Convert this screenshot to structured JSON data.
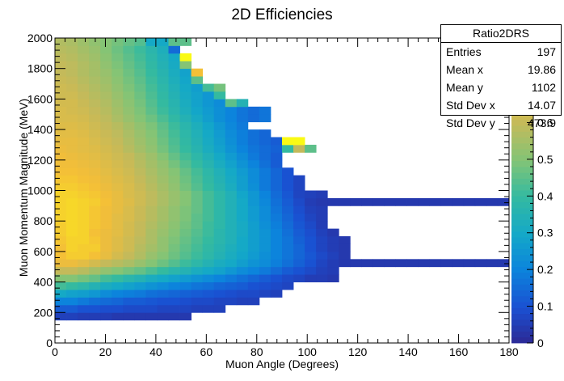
{
  "chart_data": {
    "type": "heatmap",
    "title": "2D Efficiencies",
    "xlabel": "Muon Angle (Degrees)",
    "ylabel": "Muon Momentum Magnitude (MeV)",
    "xlim": [
      0,
      180
    ],
    "ylim": [
      0,
      2000
    ],
    "zlim": [
      0,
      0.8
    ],
    "x_ticks": [
      "0",
      "20",
      "40",
      "60",
      "80",
      "100",
      "120",
      "140",
      "160",
      "180"
    ],
    "y_ticks": [
      "0",
      "200",
      "400",
      "600",
      "800",
      "1000",
      "1200",
      "1400",
      "1600",
      "1800",
      "2000"
    ],
    "colorbar_ticks": [
      "0",
      "0.1",
      "0.2",
      "0.3",
      "0.4",
      "0.5",
      "0.6",
      "0.7"
    ],
    "x_bin_width": 4.5,
    "y_bin_width": 50,
    "colormap": "parula",
    "grid": false,
    "legend": "none",
    "cells_note": "each row: y_bin_start (MeV), x_bin_start (deg), list of efficiencies for consecutive 4.5 deg bins",
    "rows": [
      [
        150,
        0,
        [
          0.06,
          0.06,
          0.05,
          0.05,
          0.05,
          0.04,
          0.04,
          0.04,
          0.04,
          0.04,
          0.04,
          0.04
        ]
      ],
      [
        200,
        0,
        [
          0.12,
          0.12,
          0.1,
          0.1,
          0.09,
          0.09,
          0.08,
          0.08,
          0.08,
          0.07,
          0.07,
          0.07,
          0.06,
          0.06,
          0.06
        ]
      ],
      [
        250,
        0,
        [
          0.2,
          0.2,
          0.18,
          0.16,
          0.15,
          0.14,
          0.12,
          0.12,
          0.11,
          0.1,
          0.1,
          0.09,
          0.08,
          0.08,
          0.07,
          0.07,
          0.06,
          0.06
        ]
      ],
      [
        300,
        0,
        [
          0.3,
          0.28,
          0.27,
          0.25,
          0.22,
          0.2,
          0.19,
          0.18,
          0.16,
          0.15,
          0.14,
          0.13,
          0.12,
          0.11,
          0.1,
          0.09,
          0.08,
          0.08,
          0.07,
          0.06
        ]
      ],
      [
        350,
        0,
        [
          0.42,
          0.4,
          0.38,
          0.35,
          0.32,
          0.3,
          0.28,
          0.26,
          0.24,
          0.22,
          0.2,
          0.19,
          0.17,
          0.16,
          0.14,
          0.13,
          0.12,
          0.1,
          0.09,
          0.08,
          0.07
        ]
      ],
      [
        400,
        0,
        [
          0.5,
          0.5,
          0.48,
          0.46,
          0.42,
          0.4,
          0.37,
          0.35,
          0.32,
          0.3,
          0.28,
          0.26,
          0.24,
          0.22,
          0.2,
          0.18,
          0.16,
          0.14,
          0.12,
          0.1,
          0.08,
          0.07,
          0.05,
          0.05,
          0.04
        ]
      ],
      [
        450,
        0,
        [
          0.6,
          0.6,
          0.58,
          0.55,
          0.52,
          0.5,
          0.48,
          0.46,
          0.43,
          0.4,
          0.37,
          0.35,
          0.32,
          0.3,
          0.28,
          0.25,
          0.22,
          0.2,
          0.18,
          0.15,
          0.12,
          0.1,
          0.08,
          0.06,
          0.05
        ]
      ],
      [
        500,
        0,
        [
          0.68,
          0.68,
          0.66,
          0.63,
          0.6,
          0.58,
          0.56,
          0.53,
          0.5,
          0.47,
          0.44,
          0.41,
          0.38,
          0.35,
          0.32,
          0.3,
          0.27,
          0.24,
          0.22,
          0.19,
          0.16,
          0.13,
          0.1,
          0.07,
          0.05,
          0.04,
          0.04,
          0.04,
          0.04,
          0.04,
          0.04,
          0.04,
          0.04,
          0.04,
          0.04,
          0.04,
          0.04,
          0.04,
          0.04,
          0.04,
          0.04,
          0.04,
          0.04,
          0.04,
          0.04,
          0.04,
          0.04,
          0.04,
          0.04,
          0.04
        ]
      ],
      [
        550,
        0,
        [
          0.7,
          0.72,
          0.72,
          0.7,
          0.67,
          0.63,
          0.6,
          0.57,
          0.53,
          0.5,
          0.47,
          0.44,
          0.41,
          0.38,
          0.35,
          0.32,
          0.29,
          0.26,
          0.23,
          0.2,
          0.17,
          0.14,
          0.11,
          0.08,
          0.06,
          0.04
        ]
      ],
      [
        600,
        0,
        [
          0.7,
          0.73,
          0.72,
          0.72,
          0.68,
          0.65,
          0.62,
          0.58,
          0.55,
          0.52,
          0.48,
          0.45,
          0.42,
          0.39,
          0.36,
          0.33,
          0.3,
          0.27,
          0.24,
          0.2,
          0.17,
          0.14,
          0.1,
          0.07,
          0.05,
          0.04
        ]
      ],
      [
        650,
        0,
        [
          0.71,
          0.73,
          0.73,
          0.71,
          0.68,
          0.65,
          0.62,
          0.59,
          0.56,
          0.52,
          0.49,
          0.46,
          0.43,
          0.4,
          0.37,
          0.34,
          0.3,
          0.27,
          0.24,
          0.2,
          0.17,
          0.13,
          0.1,
          0.07,
          0.05,
          0.04
        ]
      ],
      [
        700,
        0,
        [
          0.72,
          0.74,
          0.73,
          0.7,
          0.68,
          0.66,
          0.63,
          0.6,
          0.56,
          0.53,
          0.5,
          0.47,
          0.44,
          0.41,
          0.37,
          0.34,
          0.31,
          0.27,
          0.24,
          0.2,
          0.16,
          0.12,
          0.09,
          0.06,
          0.04
        ]
      ],
      [
        750,
        0,
        [
          0.72,
          0.74,
          0.73,
          0.71,
          0.69,
          0.66,
          0.63,
          0.6,
          0.57,
          0.54,
          0.51,
          0.48,
          0.45,
          0.41,
          0.38,
          0.34,
          0.31,
          0.27,
          0.23,
          0.19,
          0.15,
          0.11,
          0.08,
          0.05
        ]
      ],
      [
        800,
        0,
        [
          0.73,
          0.74,
          0.73,
          0.71,
          0.69,
          0.66,
          0.64,
          0.61,
          0.58,
          0.55,
          0.52,
          0.49,
          0.45,
          0.42,
          0.38,
          0.34,
          0.3,
          0.26,
          0.22,
          0.18,
          0.14,
          0.1,
          0.07,
          0.05
        ]
      ],
      [
        850,
        0,
        [
          0.73,
          0.74,
          0.73,
          0.71,
          0.69,
          0.67,
          0.64,
          0.61,
          0.58,
          0.55,
          0.52,
          0.49,
          0.46,
          0.42,
          0.38,
          0.34,
          0.3,
          0.26,
          0.22,
          0.17,
          0.13,
          0.09,
          0.06,
          0.05
        ]
      ],
      [
        900,
        0,
        [
          0.73,
          0.74,
          0.73,
          0.72,
          0.7,
          0.67,
          0.65,
          0.62,
          0.59,
          0.56,
          0.53,
          0.5,
          0.46,
          0.42,
          0.38,
          0.34,
          0.3,
          0.25,
          0.21,
          0.16,
          0.12,
          0.08,
          0.05,
          0.04,
          0.04,
          0.04,
          0.04,
          0.04,
          0.04,
          0.04,
          0.04,
          0.04,
          0.04,
          0.04,
          0.04,
          0.04,
          0.04,
          0.04,
          0.04,
          0.04,
          0.04,
          0.04,
          0.04,
          0.04,
          0.04,
          0.04,
          0.04,
          0.04,
          0.04,
          0.04
        ]
      ],
      [
        950,
        0,
        [
          0.73,
          0.73,
          0.72,
          0.71,
          0.69,
          0.67,
          0.64,
          0.62,
          0.59,
          0.56,
          0.53,
          0.5,
          0.46,
          0.42,
          0.38,
          0.34,
          0.29,
          0.25,
          0.2,
          0.15,
          0.11,
          0.07,
          0.06,
          0.05
        ]
      ],
      [
        1000,
        0,
        [
          0.72,
          0.72,
          0.71,
          0.7,
          0.68,
          0.66,
          0.64,
          0.61,
          0.58,
          0.55,
          0.52,
          0.48,
          0.44,
          0.4,
          0.36,
          0.32,
          0.27,
          0.23,
          0.18,
          0.14,
          0.1,
          0.07
        ]
      ],
      [
        1050,
        0,
        [
          0.71,
          0.71,
          0.7,
          0.69,
          0.67,
          0.65,
          0.63,
          0.6,
          0.57,
          0.54,
          0.51,
          0.47,
          0.43,
          0.39,
          0.35,
          0.31,
          0.27,
          0.22,
          0.18,
          0.14,
          0.1,
          0.07
        ]
      ],
      [
        1100,
        0,
        [
          0.7,
          0.7,
          0.69,
          0.68,
          0.66,
          0.64,
          0.62,
          0.59,
          0.56,
          0.53,
          0.5,
          0.46,
          0.42,
          0.38,
          0.34,
          0.3,
          0.26,
          0.22,
          0.18,
          0.14,
          0.1
        ]
      ],
      [
        1150,
        0,
        [
          0.69,
          0.69,
          0.68,
          0.67,
          0.65,
          0.63,
          0.61,
          0.58,
          0.55,
          0.52,
          0.48,
          0.44,
          0.4,
          0.36,
          0.32,
          0.28,
          0.24,
          0.2,
          0.16,
          0.12
        ]
      ],
      [
        1200,
        0,
        [
          0.69,
          0.68,
          0.67,
          0.66,
          0.64,
          0.62,
          0.6,
          0.57,
          0.54,
          0.5,
          0.46,
          0.42,
          0.38,
          0.34,
          0.3,
          0.26,
          0.22,
          0.18,
          0.15,
          0.12
        ]
      ],
      [
        1250,
        0,
        [
          0.68,
          0.67,
          0.66,
          0.65,
          0.63,
          0.61,
          0.58,
          0.55,
          0.52,
          0.48,
          0.44,
          0.4,
          0.36,
          0.32,
          0.28,
          0.24,
          0.2,
          0.17,
          0.15,
          0.13,
          0.4,
          0.6,
          0.45
        ]
      ],
      [
        1300,
        0,
        [
          0.67,
          0.67,
          0.66,
          0.64,
          0.62,
          0.6,
          0.57,
          0.54,
          0.51,
          0.47,
          0.43,
          0.39,
          0.35,
          0.31,
          0.27,
          0.23,
          0.19,
          0.16,
          0.14,
          0.12,
          0.8,
          0.9
        ]
      ],
      [
        1350,
        0,
        [
          0.66,
          0.66,
          0.65,
          0.63,
          0.61,
          0.59,
          0.56,
          0.53,
          0.5,
          0.46,
          0.42,
          0.38,
          0.34,
          0.3,
          0.26,
          0.22,
          0.19,
          0.16,
          0.14
        ]
      ],
      [
        1400,
        0,
        [
          0.65,
          0.65,
          0.64,
          0.62,
          0.6,
          0.58,
          0.55,
          0.52,
          0.49,
          0.45,
          0.41,
          0.37,
          0.33,
          0.29,
          0.25,
          0.21,
          0.18
        ]
      ],
      [
        1450,
        0,
        [
          0.64,
          0.64,
          0.63,
          0.61,
          0.59,
          0.56,
          0.53,
          0.5,
          0.47,
          0.43,
          0.39,
          0.35,
          0.31,
          0.27,
          0.23,
          0.2,
          0.17,
          0.15,
          0.17
        ]
      ],
      [
        1500,
        0,
        [
          0.64,
          0.63,
          0.62,
          0.6,
          0.58,
          0.55,
          0.52,
          0.49,
          0.45,
          0.41,
          0.37,
          0.33,
          0.29,
          0.26,
          0.23,
          0.2,
          0.17,
          0.15,
          0.17
        ]
      ],
      [
        1550,
        0,
        [
          0.63,
          0.63,
          0.61,
          0.59,
          0.57,
          0.54,
          0.51,
          0.48,
          0.44,
          0.4,
          0.36,
          0.32,
          0.28,
          0.25,
          0.22,
          0.45,
          0.35
        ]
      ],
      [
        1600,
        0,
        [
          0.62,
          0.62,
          0.6,
          0.58,
          0.56,
          0.53,
          0.5,
          0.47,
          0.43,
          0.39,
          0.35,
          0.31,
          0.28,
          0.25,
          0.4
        ]
      ],
      [
        1650,
        0,
        [
          0.62,
          0.61,
          0.59,
          0.57,
          0.55,
          0.52,
          0.49,
          0.46,
          0.42,
          0.38,
          0.34,
          0.3,
          0.27,
          0.42,
          0.48
        ]
      ],
      [
        1700,
        0,
        [
          0.61,
          0.6,
          0.58,
          0.56,
          0.54,
          0.51,
          0.48,
          0.45,
          0.41,
          0.37,
          0.33,
          0.29,
          0.45
        ]
      ],
      [
        1750,
        0,
        [
          0.6,
          0.59,
          0.57,
          0.55,
          0.53,
          0.5,
          0.47,
          0.44,
          0.4,
          0.36,
          0.32,
          0.28,
          0.7
        ]
      ],
      [
        1800,
        0,
        [
          0.6,
          0.59,
          0.57,
          0.55,
          0.52,
          0.49,
          0.46,
          0.43,
          0.39,
          0.35,
          0.31,
          0.5
        ]
      ],
      [
        1850,
        0,
        [
          0.59,
          0.58,
          0.56,
          0.54,
          0.51,
          0.48,
          0.45,
          0.42,
          0.38,
          0.34,
          0.3,
          0.8
        ]
      ],
      [
        1900,
        0,
        [
          0.58,
          0.57,
          0.55,
          0.53,
          0.5,
          0.47,
          0.44,
          0.41,
          0.37,
          0.33,
          0.15
        ]
      ],
      [
        1950,
        0,
        [
          0.57,
          0.56,
          0.54,
          0.52,
          0.5,
          0.48,
          0.46,
          0.44,
          0.3,
          0.3,
          0.45,
          0.45
        ]
      ]
    ]
  },
  "stats_box": {
    "name": "Ratio2DRS",
    "rows": [
      {
        "label": "Entries",
        "value": "197"
      },
      {
        "label": "Mean x",
        "value": "19.86"
      },
      {
        "label": "Mean y",
        "value": "1102"
      },
      {
        "label": "Std Dev x",
        "value": "14.07"
      },
      {
        "label": "Std Dev y",
        "value": "473.9"
      }
    ]
  }
}
